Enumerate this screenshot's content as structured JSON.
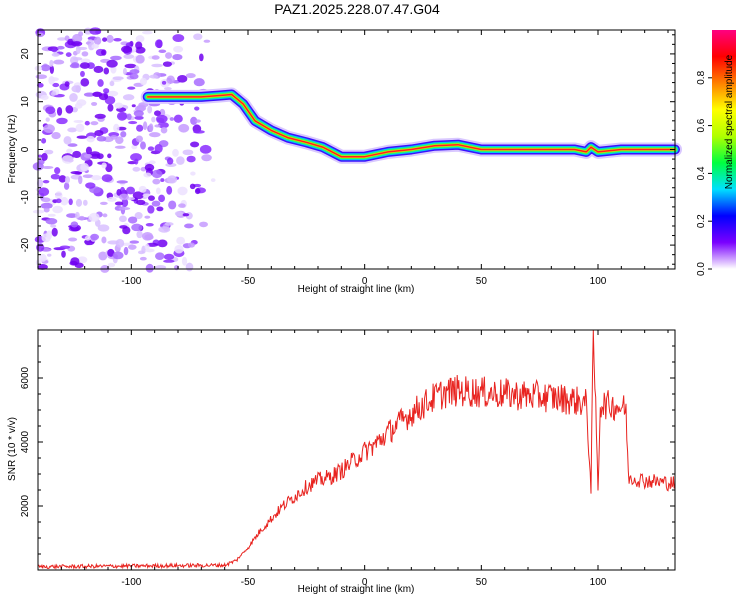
{
  "figure_title": "PAZ1.2025.228.07.47.G04",
  "chart_data": [
    {
      "type": "heatmap",
      "xlabel": "Height of straight line (km)",
      "ylabel": "Frequency (Hz)",
      "xlim": [
        -140,
        133
      ],
      "ylim": [
        -25,
        25
      ],
      "xticks": [
        -100,
        -50,
        0,
        50,
        100
      ],
      "yticks": [
        -20,
        -10,
        0,
        10,
        20
      ],
      "colorbar": {
        "label": "Normalized spectral amplitude",
        "range": [
          0,
          1
        ],
        "ticks": [
          "0.0",
          "0.2",
          "0.4",
          "0.6",
          "0.8"
        ],
        "colors": [
          "#ffffff",
          "#7a00ff",
          "#0000ff",
          "#00e0ff",
          "#00ff40",
          "#b0ff00",
          "#ffff00",
          "#ff8000",
          "#ff0000",
          "#ff0080"
        ]
      },
      "ridge": {
        "x": [
          -93,
          -80,
          -70,
          -62,
          -57,
          -52,
          -47,
          -40,
          -33,
          -25,
          -18,
          -10,
          -5,
          0,
          10,
          20,
          30,
          40,
          50,
          60,
          70,
          80,
          90,
          95,
          97,
          100,
          110,
          120,
          133
        ],
        "y": [
          11,
          11,
          11,
          11.3,
          11.5,
          9.5,
          6,
          4,
          2.5,
          1.5,
          0.5,
          -1.5,
          -1.5,
          -1.5,
          -0.5,
          0,
          0.8,
          1,
          0,
          0,
          0,
          0,
          0,
          -0.5,
          0.5,
          -0.5,
          0,
          0,
          0
        ]
      },
      "noise_region_x": [
        -140,
        -60
      ]
    },
    {
      "type": "line",
      "xlabel": "Height of straight line (km)",
      "ylabel": "SNR (10 * v/v)",
      "xlim": [
        -140,
        133
      ],
      "ylim": [
        0,
        7500
      ],
      "xticks": [
        -100,
        -50,
        0,
        50,
        100
      ],
      "yticks": [
        2000,
        4000,
        6000
      ],
      "series": [
        {
          "color": "#e8231f",
          "x": [
            -140,
            -60,
            -55,
            -50,
            -45,
            -40,
            -35,
            -30,
            -25,
            -20,
            -15,
            -10,
            -5,
            0,
            5,
            10,
            15,
            20,
            25,
            30,
            35,
            40,
            50,
            60,
            70,
            80,
            90,
            95,
            97,
            98,
            99,
            100,
            101,
            105,
            110,
            112,
            113,
            120,
            133
          ],
          "y": [
            100,
            150,
            300,
            700,
            1200,
            1600,
            2000,
            2300,
            2600,
            2800,
            2900,
            3100,
            3400,
            3700,
            3950,
            4300,
            4600,
            4900,
            5150,
            5400,
            5550,
            5600,
            5550,
            5500,
            5450,
            5400,
            5300,
            5200,
            2600,
            7500,
            5000,
            2600,
            5200,
            5150,
            5100,
            5000,
            2900,
            2800,
            2700
          ]
        }
      ]
    }
  ]
}
